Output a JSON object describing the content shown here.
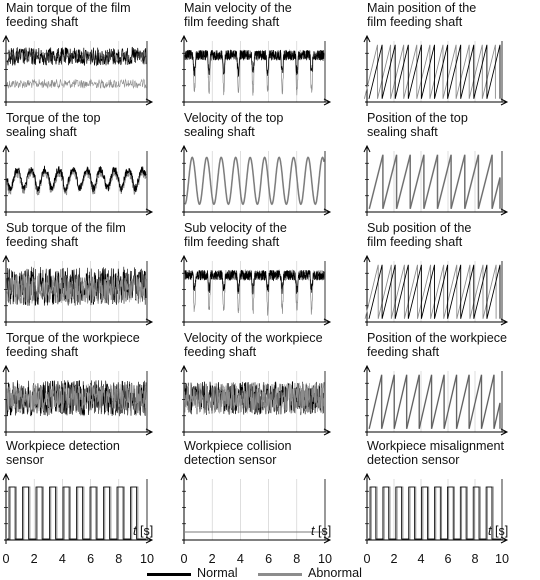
{
  "chart_data": [
    {
      "type": "line",
      "title": "Main torque of the film\nfeeding shaft",
      "series": [
        {
          "name": "Normal"
        },
        {
          "name": "Abnormal"
        }
      ]
    },
    {
      "type": "line",
      "title": "Main velocity of the\nfilm feeding shaft",
      "series": [
        {
          "name": "Normal"
        },
        {
          "name": "Abnormal"
        }
      ]
    },
    {
      "type": "line",
      "title": "Main position of the\nfilm feeding shaft",
      "series": [
        {
          "name": "Normal"
        },
        {
          "name": "Abnormal"
        }
      ]
    },
    {
      "type": "line",
      "title": "Torque of the top\nsealing shaft",
      "series": [
        {
          "name": "Normal"
        },
        {
          "name": "Abnormal"
        }
      ]
    },
    {
      "type": "line",
      "title": "Velocity of the top\nsealing shaft",
      "series": [
        {
          "name": "Normal"
        },
        {
          "name": "Abnormal"
        }
      ]
    },
    {
      "type": "line",
      "title": "Position of the top\nsealing shaft",
      "series": [
        {
          "name": "Normal"
        },
        {
          "name": "Abnormal"
        }
      ]
    },
    {
      "type": "line",
      "title": "Sub torque of the film\nfeeding shaft",
      "series": [
        {
          "name": "Normal"
        },
        {
          "name": "Abnormal"
        }
      ]
    },
    {
      "type": "line",
      "title": "Sub velocity of the\nfilm feeding shaft",
      "series": [
        {
          "name": "Normal"
        },
        {
          "name": "Abnormal"
        }
      ]
    },
    {
      "type": "line",
      "title": "Sub position of the\nfilm feeding shaft",
      "series": [
        {
          "name": "Normal"
        },
        {
          "name": "Abnormal"
        }
      ]
    },
    {
      "type": "line",
      "title": "Torque of the workpiece\nfeeding shaft",
      "series": [
        {
          "name": "Normal"
        },
        {
          "name": "Abnormal"
        }
      ]
    },
    {
      "type": "line",
      "title": "Velocity of the workpiece\nfeeding shaft",
      "series": [
        {
          "name": "Normal"
        },
        {
          "name": "Abnormal"
        }
      ]
    },
    {
      "type": "line",
      "title": "Position of the workpiece\nfeeding shaft",
      "series": [
        {
          "name": "Normal"
        },
        {
          "name": "Abnormal"
        }
      ]
    },
    {
      "type": "line",
      "title": "Workpiece detection\nsensor",
      "series": [
        {
          "name": "Normal"
        },
        {
          "name": "Abnormal"
        }
      ]
    },
    {
      "type": "line",
      "title": "Workpiece collision\ndetection sensor",
      "series": [
        {
          "name": "Normal"
        },
        {
          "name": "Abnormal"
        }
      ]
    },
    {
      "type": "line",
      "title": "Workpiece misalignment\ndetection sensor",
      "series": [
        {
          "name": "Normal"
        },
        {
          "name": "Abnormal"
        }
      ]
    }
  ],
  "x_axis": {
    "label": "t",
    "unit": "[s]",
    "ticks": [
      "0",
      "2",
      "4",
      "6",
      "8",
      "10"
    ],
    "range": [
      0,
      10
    ]
  },
  "legend": {
    "normal": "Normal",
    "abnormal": "Abnormal",
    "normal_color": "#000000",
    "abnormal_color": "#8c8c8c"
  },
  "colors": {
    "normal": "#000000",
    "abnormal": "#8c8c8c",
    "axis": "#000000",
    "grid": "#c8c8c8"
  }
}
